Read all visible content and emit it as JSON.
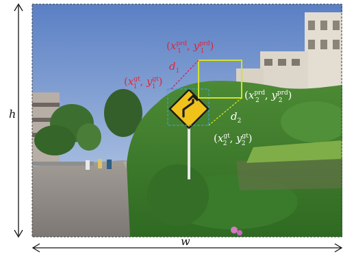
{
  "dimension_labels": {
    "width": "w",
    "height": "h"
  },
  "distance_labels": {
    "d1": "d",
    "d1_sub": "1",
    "d2": "d",
    "d2_sub": "2"
  },
  "boxes": {
    "predicted": {
      "color": "#d4e22a",
      "style": "solid"
    },
    "ground_truth": {
      "color": "#3aa0c8",
      "style": "dashed"
    }
  },
  "point_labels": {
    "p1_pred": {
      "x": "x",
      "y": "y",
      "sub": "1",
      "sup": "prd",
      "color": "#e0253a"
    },
    "p1_gt": {
      "x": "x",
      "y": "y",
      "sub": "1",
      "sup": "gt",
      "color": "#e0253a"
    },
    "p2_pred": {
      "x": "x",
      "y": "y",
      "sub": "2",
      "sup": "prd",
      "color": "#ffffff"
    },
    "p2_gt": {
      "x": "x",
      "y": "y",
      "sub": "2",
      "sup": "gt",
      "color": "#ffffff"
    }
  },
  "colors": {
    "sky_top": "#5a7fc4",
    "sky_bottom": "#b9cde6",
    "hedge": "#3f7a2c",
    "road": "#8f8a86",
    "sign": "#f0c21a"
  }
}
